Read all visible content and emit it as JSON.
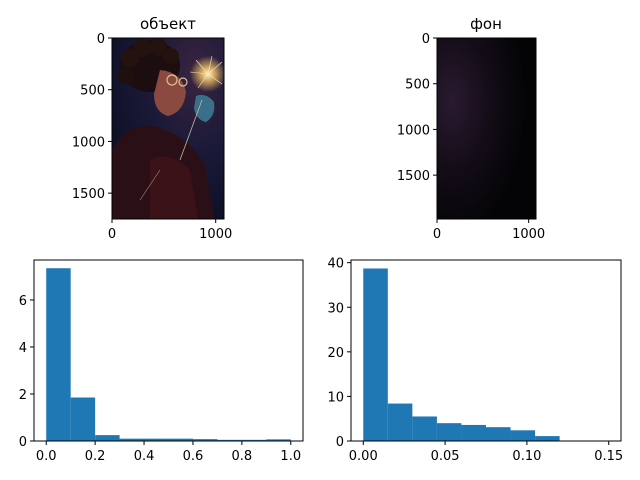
{
  "figure": {
    "image_panels": [
      {
        "id": "object",
        "title": "объект",
        "image_description": "person with curly hair and round glasses holding a lit sparkler, dark background, red and blue lighting",
        "extent_x": [
          0,
          1080
        ],
        "extent_y": [
          0,
          1750
        ],
        "x_ticks": [
          0,
          1000
        ],
        "y_ticks": [
          0,
          500,
          1000,
          1500
        ]
      },
      {
        "id": "background",
        "title": "фон",
        "image_description": "dark near-black background with faint purple glow on the left",
        "extent_x": [
          0,
          1080
        ],
        "extent_y": [
          0,
          1980
        ],
        "x_ticks": [
          0,
          1000
        ],
        "y_ticks": [
          0,
          500,
          1000,
          1500
        ]
      }
    ],
    "colors": {
      "bar": "#1f77b4"
    }
  },
  "chart_data": [
    {
      "type": "bar",
      "id": "object-histogram",
      "title": "",
      "xlabel": "",
      "ylabel": "",
      "bin_edges": [
        0,
        0.1,
        0.2,
        0.3,
        0.4,
        0.5,
        0.6,
        0.7,
        0.8,
        0.9,
        1.0
      ],
      "values": [
        7.35,
        1.85,
        0.25,
        0.1,
        0.1,
        0.1,
        0.08,
        0.05,
        0.05,
        0.07
      ],
      "xlim": [
        -0.05,
        1.05
      ],
      "ylim": [
        0,
        7.7
      ],
      "x_ticks": [
        "0.0",
        "0.2",
        "0.4",
        "0.6",
        "0.8",
        "1.0"
      ],
      "y_ticks": [
        "0",
        "2",
        "4",
        "6"
      ],
      "grid": false
    },
    {
      "type": "bar",
      "id": "background-histogram",
      "title": "",
      "xlabel": "",
      "ylabel": "",
      "bin_edges": [
        0,
        0.015,
        0.03,
        0.045,
        0.06,
        0.075,
        0.09,
        0.105,
        0.12,
        0.135,
        0.15
      ],
      "values": [
        38.7,
        8.4,
        5.5,
        4.0,
        3.6,
        3.1,
        2.4,
        1.1,
        0.1,
        0.1
      ],
      "xlim": [
        -0.0075,
        0.1575
      ],
      "ylim": [
        0,
        40.6
      ],
      "x_ticks": [
        "0.00",
        "0.05",
        "0.10",
        "0.15"
      ],
      "y_ticks": [
        "0",
        "10",
        "20",
        "30",
        "40"
      ],
      "grid": false
    }
  ]
}
